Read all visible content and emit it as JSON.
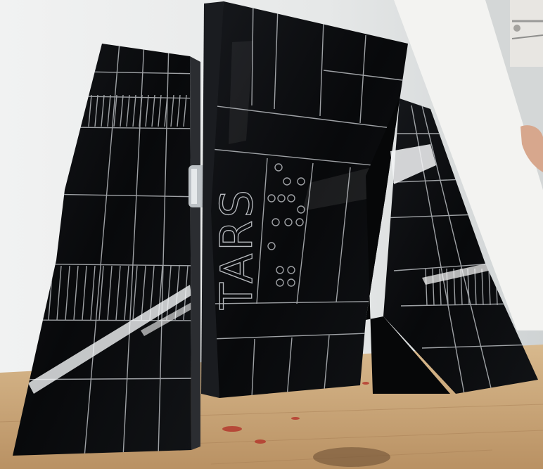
{
  "scene": {
    "engraved_text": "TARS",
    "colors": {
      "wall": "#e9eaea",
      "wall_shadow": "#c9cccd",
      "panel_board": "#f2f2f0",
      "floor": "#c9a77a",
      "floor_dark": "#9b7b54",
      "acrylic": "#0b0c0e",
      "acrylic_edge": "#1c1e22",
      "engraving": "#b9bcc0",
      "reflection": "#f4f6f7",
      "skin": "#d7a78d",
      "metal": "#bcc1c5"
    },
    "icons": {
      "robot": "tars-robot-model",
      "hand": "hand-icon"
    }
  }
}
